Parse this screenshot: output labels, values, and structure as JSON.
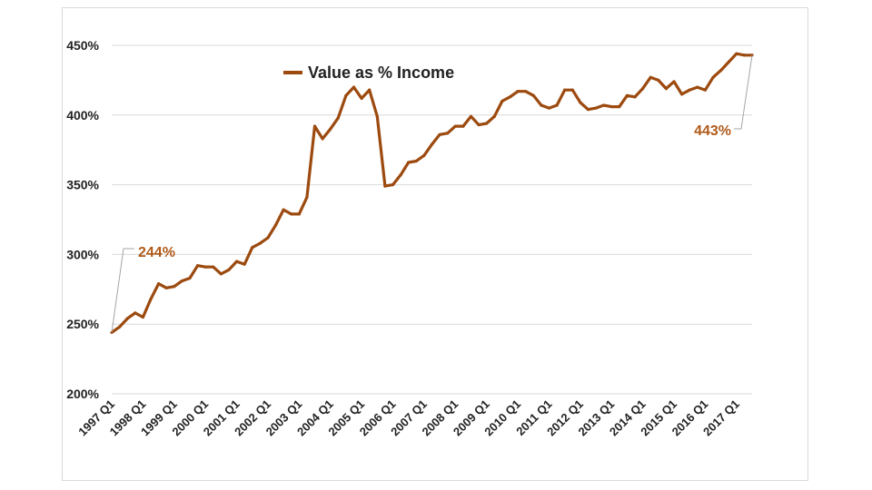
{
  "colors": {
    "series": "#9c4a0f",
    "callout": "#b05a1a",
    "grid": "#d9d9d9",
    "leader": "#a6a6a6"
  },
  "chart_data": {
    "type": "line",
    "title": "",
    "xlabel": "",
    "ylabel": "",
    "ylim": [
      200,
      450
    ],
    "y_ticks": [
      "200%",
      "250%",
      "300%",
      "350%",
      "400%",
      "450%"
    ],
    "y_tick_values": [
      200,
      250,
      300,
      350,
      400,
      450
    ],
    "x_tick_labels": [
      "1997 Q1",
      "1998 Q1",
      "1999 Q1",
      "2000 Q1",
      "2001 Q1",
      "2002 Q1",
      "2003 Q1",
      "2004 Q1",
      "2005 Q1",
      "2006 Q1",
      "2007 Q1",
      "2008 Q1",
      "2009 Q1",
      "2010 Q1",
      "2011 Q1",
      "2012 Q1",
      "2013 Q1",
      "2014 Q1",
      "2015 Q1",
      "2016 Q1",
      "2017 Q1"
    ],
    "legend": {
      "position": "top-center",
      "entries": [
        "Value as % Income"
      ]
    },
    "grid": true,
    "series": [
      {
        "name": "Value as % Income",
        "start": "1997 Q1",
        "frequency": "quarterly",
        "values": [
          244,
          248,
          254,
          258,
          255,
          268,
          279,
          276,
          277,
          281,
          283,
          292,
          291,
          291,
          286,
          289,
          295,
          293,
          305,
          308,
          312,
          321,
          332,
          329,
          329,
          341,
          392,
          383,
          390,
          398,
          414,
          420,
          412,
          418,
          399,
          349,
          350,
          357,
          366,
          367,
          371,
          379,
          386,
          387,
          392,
          392,
          399,
          393,
          394,
          399,
          410,
          413,
          417,
          417,
          414,
          407,
          405,
          407,
          418,
          418,
          409,
          404,
          405,
          407,
          406,
          406,
          414,
          413,
          419,
          427,
          425,
          419,
          424,
          415,
          418,
          420,
          418,
          427,
          432,
          438,
          444,
          443,
          443
        ],
        "callouts": [
          {
            "label": "244%",
            "period": "1997 Q1",
            "value": 244
          },
          {
            "label": "443%",
            "period": "2017 Q3",
            "value": 443
          }
        ]
      }
    ]
  }
}
